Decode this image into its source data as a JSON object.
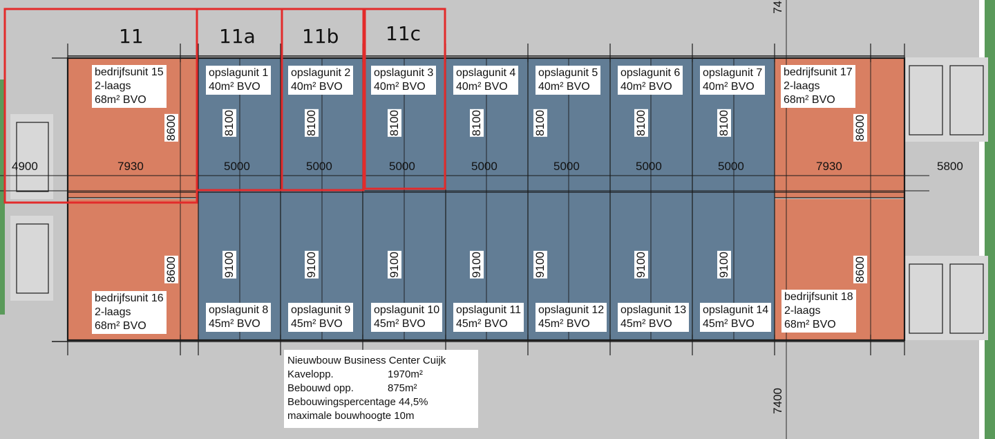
{
  "colors": {
    "background": "#c6c6c6",
    "bedrijfsunit": "#d97f62",
    "opslagunit": "#627d95",
    "highlight": "#e32b2b",
    "outline": "#1a1a1a",
    "green_edge": "#5a9a5a"
  },
  "column_labels": [
    "11",
    "11a",
    "11b",
    "11c"
  ],
  "top_row": {
    "bedrijfsunit_left": {
      "lines": [
        "bedrijfsunit 15",
        "2-laags",
        "68m² BVO"
      ]
    },
    "opslag": [
      {
        "name": "opslagunit 1",
        "area": "40m² BVO"
      },
      {
        "name": "opslagunit 2",
        "area": "40m² BVO"
      },
      {
        "name": "opslagunit 3",
        "area": "40m² BVO"
      },
      {
        "name": "opslagunit 4",
        "area": "40m² BVO"
      },
      {
        "name": "opslagunit 5",
        "area": "40m² BVO"
      },
      {
        "name": "opslagunit 6",
        "area": "40m² BVO"
      },
      {
        "name": "opslagunit 7",
        "area": "40m² BVO"
      }
    ],
    "bedrijfsunit_right": {
      "lines": [
        "bedrijfsunit 17",
        "2-laags",
        "68m² BVO"
      ]
    }
  },
  "bottom_row": {
    "bedrijfsunit_left": {
      "lines": [
        "bedrijfsunit 16",
        "2-laags",
        "68m² BVO"
      ]
    },
    "opslag": [
      {
        "name": "opslagunit 8",
        "area": "45m² BVO"
      },
      {
        "name": "opslagunit 9",
        "area": "45m² BVO"
      },
      {
        "name": "opslagunit 10",
        "area": "45m² BVO"
      },
      {
        "name": "opslagunit 11",
        "area": "45m² BVO"
      },
      {
        "name": "opslagunit 12",
        "area": "45m² BVO"
      },
      {
        "name": "opslagunit 13",
        "area": "45m² BVO"
      },
      {
        "name": "opslagunit 14",
        "area": "45m² BVO"
      }
    ],
    "bedrijfsunit_right": {
      "lines": [
        "bedrijfsunit 18",
        "2-laags",
        "68m² BVO"
      ]
    }
  },
  "dimensions": {
    "left_margin": "4900",
    "left_unit_width": "7930",
    "opslag_width": [
      "5000",
      "5000",
      "5000",
      "5000",
      "5000",
      "5000",
      "5000"
    ],
    "right_unit_width": "7930",
    "right_margin": "5800",
    "top_depth": "8100",
    "bottom_depth": "9100",
    "unit_depth": "8600",
    "vertical_offset": "7400",
    "vertical_offset_partial": "74"
  },
  "info_box": {
    "title": "Nieuwbouw Business Center Cuijk",
    "rows": [
      {
        "key": "Kavelopp.",
        "value": "1970m²"
      },
      {
        "key": "Bebouwd opp.",
        "value": "875m²"
      },
      {
        "key": "Bebouwingspercentage",
        "value": "44,5%"
      },
      {
        "key": "maximale bouwhoogte",
        "value": "10m"
      }
    ]
  }
}
